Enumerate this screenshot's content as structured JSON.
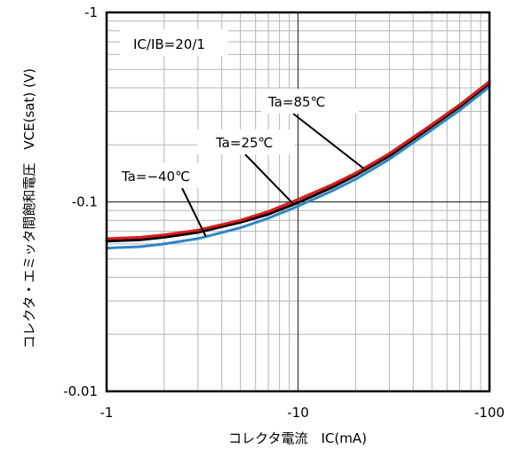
{
  "chart_data": {
    "type": "line",
    "x_scale": "log",
    "y_scale": "log",
    "xlim": [
      -1,
      -100
    ],
    "ylim": [
      -0.01,
      -1
    ],
    "x_ticks": [
      -1,
      -10,
      -100
    ],
    "x_tick_labels": [
      "-1",
      "-10",
      "-100"
    ],
    "y_ticks": [
      -0.01,
      -0.1,
      -1
    ],
    "y_tick_labels": [
      "-0.01",
      "-0.1",
      "-1"
    ],
    "xlabel": "コレクタ電流　IC(mA)",
    "ylabel": "コレクタ・エミッタ間飽和電圧　VCE(sat) (V)",
    "grid": true,
    "condition_label": "IC/IB=20/1",
    "series": [
      {
        "name": "Ta=85℃",
        "color": "#e01b1b",
        "x": [
          -1,
          -1.5,
          -2,
          -3,
          -5,
          -7,
          -10,
          -15,
          -20,
          -30,
          -50,
          -70,
          -100
        ],
        "y": [
          -0.064,
          -0.065,
          -0.067,
          -0.071,
          -0.08,
          -0.089,
          -0.103,
          -0.123,
          -0.142,
          -0.18,
          -0.256,
          -0.326,
          -0.432
        ]
      },
      {
        "name": "Ta=25℃",
        "color": "#000000",
        "x": [
          -1,
          -1.5,
          -2,
          -3,
          -5,
          -7,
          -10,
          -15,
          -20,
          -30,
          -50,
          -70,
          -100
        ],
        "y": [
          -0.062,
          -0.063,
          -0.065,
          -0.069,
          -0.078,
          -0.086,
          -0.099,
          -0.119,
          -0.138,
          -0.175,
          -0.25,
          -0.318,
          -0.422
        ]
      },
      {
        "name": "Ta=-40℃",
        "color": "#2e86c9",
        "x": [
          -1,
          -1.5,
          -2,
          -3,
          -5,
          -7,
          -10,
          -15,
          -20,
          -30,
          -50,
          -70,
          -100
        ],
        "y": [
          -0.057,
          -0.058,
          -0.06,
          -0.064,
          -0.073,
          -0.082,
          -0.095,
          -0.114,
          -0.132,
          -0.168,
          -0.24,
          -0.305,
          -0.405
        ]
      }
    ],
    "series_labels": [
      "Ta=85℃",
      "Ta=25℃",
      "Ta=−40℃"
    ]
  }
}
